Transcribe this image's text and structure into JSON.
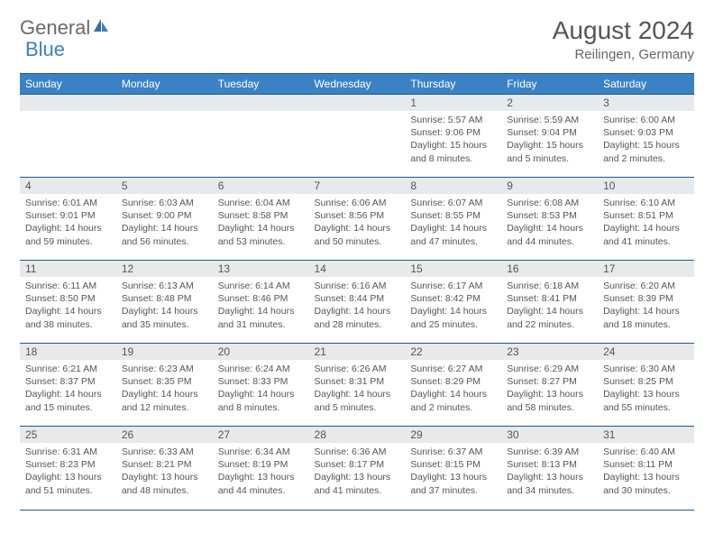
{
  "logo": {
    "text1": "General",
    "text2": "Blue"
  },
  "title": "August 2024",
  "location": "Reilingen, Germany",
  "colors": {
    "header_bg": "#3b82c4",
    "border": "#1e5a8e",
    "date_bg": "#e7e9eb",
    "text": "#555555"
  },
  "dayNames": [
    "Sunday",
    "Monday",
    "Tuesday",
    "Wednesday",
    "Thursday",
    "Friday",
    "Saturday"
  ],
  "weeks": [
    [
      null,
      null,
      null,
      null,
      {
        "d": "1",
        "sr": "5:57 AM",
        "ss": "9:06 PM",
        "dl": "15 hours and 8 minutes."
      },
      {
        "d": "2",
        "sr": "5:59 AM",
        "ss": "9:04 PM",
        "dl": "15 hours and 5 minutes."
      },
      {
        "d": "3",
        "sr": "6:00 AM",
        "ss": "9:03 PM",
        "dl": "15 hours and 2 minutes."
      }
    ],
    [
      {
        "d": "4",
        "sr": "6:01 AM",
        "ss": "9:01 PM",
        "dl": "14 hours and 59 minutes."
      },
      {
        "d": "5",
        "sr": "6:03 AM",
        "ss": "9:00 PM",
        "dl": "14 hours and 56 minutes."
      },
      {
        "d": "6",
        "sr": "6:04 AM",
        "ss": "8:58 PM",
        "dl": "14 hours and 53 minutes."
      },
      {
        "d": "7",
        "sr": "6:06 AM",
        "ss": "8:56 PM",
        "dl": "14 hours and 50 minutes."
      },
      {
        "d": "8",
        "sr": "6:07 AM",
        "ss": "8:55 PM",
        "dl": "14 hours and 47 minutes."
      },
      {
        "d": "9",
        "sr": "6:08 AM",
        "ss": "8:53 PM",
        "dl": "14 hours and 44 minutes."
      },
      {
        "d": "10",
        "sr": "6:10 AM",
        "ss": "8:51 PM",
        "dl": "14 hours and 41 minutes."
      }
    ],
    [
      {
        "d": "11",
        "sr": "6:11 AM",
        "ss": "8:50 PM",
        "dl": "14 hours and 38 minutes."
      },
      {
        "d": "12",
        "sr": "6:13 AM",
        "ss": "8:48 PM",
        "dl": "14 hours and 35 minutes."
      },
      {
        "d": "13",
        "sr": "6:14 AM",
        "ss": "8:46 PM",
        "dl": "14 hours and 31 minutes."
      },
      {
        "d": "14",
        "sr": "6:16 AM",
        "ss": "8:44 PM",
        "dl": "14 hours and 28 minutes."
      },
      {
        "d": "15",
        "sr": "6:17 AM",
        "ss": "8:42 PM",
        "dl": "14 hours and 25 minutes."
      },
      {
        "d": "16",
        "sr": "6:18 AM",
        "ss": "8:41 PM",
        "dl": "14 hours and 22 minutes."
      },
      {
        "d": "17",
        "sr": "6:20 AM",
        "ss": "8:39 PM",
        "dl": "14 hours and 18 minutes."
      }
    ],
    [
      {
        "d": "18",
        "sr": "6:21 AM",
        "ss": "8:37 PM",
        "dl": "14 hours and 15 minutes."
      },
      {
        "d": "19",
        "sr": "6:23 AM",
        "ss": "8:35 PM",
        "dl": "14 hours and 12 minutes."
      },
      {
        "d": "20",
        "sr": "6:24 AM",
        "ss": "8:33 PM",
        "dl": "14 hours and 8 minutes."
      },
      {
        "d": "21",
        "sr": "6:26 AM",
        "ss": "8:31 PM",
        "dl": "14 hours and 5 minutes."
      },
      {
        "d": "22",
        "sr": "6:27 AM",
        "ss": "8:29 PM",
        "dl": "14 hours and 2 minutes."
      },
      {
        "d": "23",
        "sr": "6:29 AM",
        "ss": "8:27 PM",
        "dl": "13 hours and 58 minutes."
      },
      {
        "d": "24",
        "sr": "6:30 AM",
        "ss": "8:25 PM",
        "dl": "13 hours and 55 minutes."
      }
    ],
    [
      {
        "d": "25",
        "sr": "6:31 AM",
        "ss": "8:23 PM",
        "dl": "13 hours and 51 minutes."
      },
      {
        "d": "26",
        "sr": "6:33 AM",
        "ss": "8:21 PM",
        "dl": "13 hours and 48 minutes."
      },
      {
        "d": "27",
        "sr": "6:34 AM",
        "ss": "8:19 PM",
        "dl": "13 hours and 44 minutes."
      },
      {
        "d": "28",
        "sr": "6:36 AM",
        "ss": "8:17 PM",
        "dl": "13 hours and 41 minutes."
      },
      {
        "d": "29",
        "sr": "6:37 AM",
        "ss": "8:15 PM",
        "dl": "13 hours and 37 minutes."
      },
      {
        "d": "30",
        "sr": "6:39 AM",
        "ss": "8:13 PM",
        "dl": "13 hours and 34 minutes."
      },
      {
        "d": "31",
        "sr": "6:40 AM",
        "ss": "8:11 PM",
        "dl": "13 hours and 30 minutes."
      }
    ]
  ],
  "labels": {
    "sunrise": "Sunrise: ",
    "sunset": "Sunset: ",
    "daylight": "Daylight: "
  }
}
